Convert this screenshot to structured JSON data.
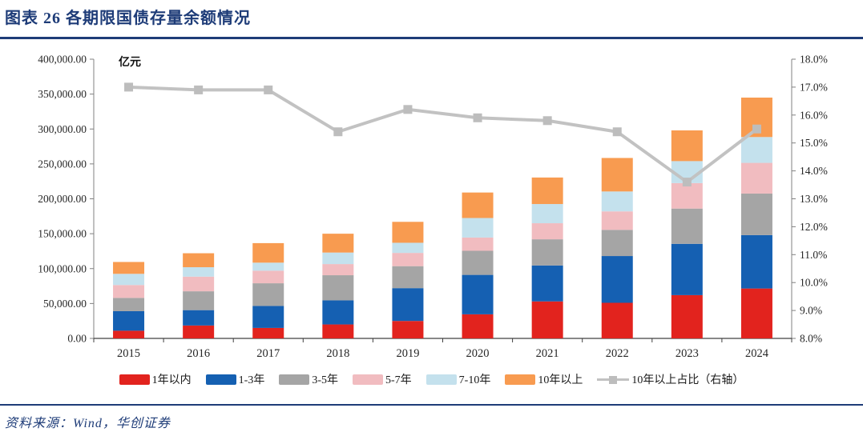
{
  "header": {
    "title": "图表 26  各期限国债存量余额情况"
  },
  "footer": {
    "source": "资料来源：Wind，华创证券"
  },
  "colors": {
    "title_navy": "#1e3c78",
    "axis_line": "#808080",
    "baseline": "#404040",
    "axis_text": "#262626"
  },
  "chart_data": {
    "type": "bar",
    "subtype": "stacked-bar-with-line-combo",
    "title": "各期限国债存量余额情况",
    "unit_label": "亿元",
    "grid": false,
    "legend_position": "bottom",
    "categories": [
      "2015",
      "2016",
      "2017",
      "2018",
      "2019",
      "2020",
      "2021",
      "2022",
      "2023",
      "2024"
    ],
    "bar_series": [
      {
        "name": "1年以内",
        "color": "#e2231e",
        "values": [
          11000,
          18500,
          15000,
          20000,
          25000,
          34500,
          53000,
          51000,
          62000,
          71500
        ]
      },
      {
        "name": "1-3年",
        "color": "#1560b2",
        "values": [
          28000,
          22000,
          31500,
          34500,
          47000,
          56500,
          51500,
          67000,
          73500,
          76500
        ]
      },
      {
        "name": "3-5年",
        "color": "#a5a5a5",
        "values": [
          19000,
          27000,
          32500,
          36000,
          31500,
          34500,
          37500,
          37500,
          50500,
          59500
        ]
      },
      {
        "name": "5-7年",
        "color": "#f1bcc0",
        "values": [
          18500,
          21000,
          18000,
          16000,
          19000,
          19000,
          23000,
          26500,
          36500,
          44000
        ]
      },
      {
        "name": "7-10年",
        "color": "#c4e1ed",
        "values": [
          16000,
          13500,
          11500,
          16500,
          14500,
          28000,
          27500,
          28500,
          31500,
          37000
        ]
      },
      {
        "name": "10年以上",
        "color": "#f89b50",
        "values": [
          17000,
          20000,
          28000,
          27000,
          30000,
          36500,
          38000,
          48000,
          44000,
          56500
        ]
      }
    ],
    "line_series": {
      "name": "10年以上占比（右轴）",
      "color": "#c2c2c2",
      "marker_color": "#bdbdbd",
      "axis": "right",
      "values": [
        17.0,
        16.9,
        16.9,
        15.4,
        16.2,
        15.9,
        15.8,
        15.4,
        13.6,
        15.5
      ]
    },
    "left_axis": {
      "min": 0,
      "max": 400000,
      "step": 50000,
      "format": "#,##0.00"
    },
    "right_axis": {
      "min": 8,
      "max": 18,
      "step": 1,
      "suffix": "%"
    }
  }
}
